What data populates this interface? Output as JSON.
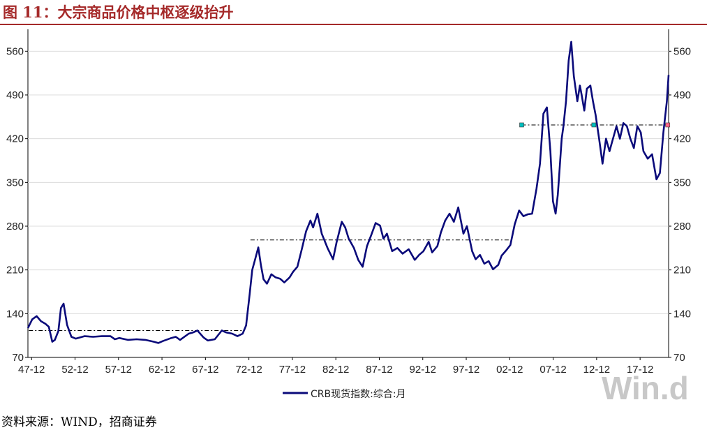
{
  "header": {
    "title": "图 11：大宗商品价格中枢逐级抬升"
  },
  "footer": {
    "source": "资料来源：WIND，招商证券"
  },
  "watermark": "Win.d",
  "chart_data": {
    "type": "line",
    "title": "图 11：大宗商品价格中枢逐级抬升",
    "xlabel": "",
    "ylabel": "",
    "x_tick_labels": [
      "47-12",
      "52-12",
      "57-12",
      "62-12",
      "67-12",
      "72-12",
      "77-12",
      "82-12",
      "87-12",
      "92-12",
      "97-12",
      "02-12",
      "07-12",
      "12-12",
      "17-12"
    ],
    "x_tick_years": [
      1947.92,
      1952.92,
      1957.92,
      1962.92,
      1967.92,
      1972.92,
      1977.92,
      1982.92,
      1987.92,
      1992.92,
      1997.92,
      2002.92,
      2007.92,
      2012.92,
      2017.92
    ],
    "xlim": [
      1947.5,
      2021.2
    ],
    "ylim": [
      70,
      595
    ],
    "y_ticks": [
      70,
      140,
      210,
      280,
      350,
      420,
      490,
      560
    ],
    "dual_y_axis": true,
    "grid": "horizontal",
    "legend_position": "bottom",
    "colors": {
      "series": "#0a0a7a",
      "reference": "#000000",
      "marker": "#00bfbf",
      "marker_end": "#ff6688",
      "title": "#a52a2a"
    },
    "series": [
      {
        "name": "CRB现货指数:综合:月",
        "x": [
          1947.5,
          1948.0,
          1948.5,
          1949.0,
          1949.5,
          1949.9,
          1950.3,
          1950.6,
          1951.0,
          1951.3,
          1951.6,
          1952.0,
          1952.5,
          1953.0,
          1954.0,
          1955.0,
          1956.0,
          1957.0,
          1957.5,
          1958.0,
          1959.0,
          1960.0,
          1961.0,
          1962.0,
          1962.5,
          1963.0,
          1964.0,
          1964.5,
          1965.0,
          1966.0,
          1966.5,
          1967.0,
          1967.7,
          1968.2,
          1969.0,
          1969.8,
          1970.3,
          1971.0,
          1971.6,
          1972.2,
          1972.6,
          1973.0,
          1973.3,
          1973.6,
          1974.0,
          1974.3,
          1974.6,
          1975.0,
          1975.5,
          1976.0,
          1976.5,
          1977.0,
          1977.6,
          1978.0,
          1978.5,
          1979.0,
          1979.5,
          1980.0,
          1980.3,
          1980.8,
          1981.3,
          1982.0,
          1982.6,
          1983.0,
          1983.6,
          1984.0,
          1984.4,
          1985.0,
          1985.5,
          1986.0,
          1986.5,
          1987.0,
          1987.5,
          1988.0,
          1988.4,
          1988.8,
          1989.4,
          1990.0,
          1990.6,
          1991.3,
          1992.0,
          1992.5,
          1993.0,
          1993.6,
          1994.0,
          1994.6,
          1995.0,
          1995.5,
          1996.0,
          1996.5,
          1997.0,
          1997.6,
          1998.0,
          1998.6,
          1999.0,
          1999.5,
          2000.0,
          2000.5,
          2001.0,
          2001.6,
          2002.0,
          2002.5,
          2003.0,
          2003.5,
          2004.0,
          2004.5,
          2005.0,
          2005.5,
          2006.0,
          2006.4,
          2006.8,
          2007.2,
          2007.6,
          2007.9,
          2008.2,
          2008.45,
          2008.6,
          2008.9,
          2009.1,
          2009.4,
          2009.7,
          2010.0,
          2010.3,
          2010.5,
          2010.7,
          2011.0,
          2011.2,
          2011.5,
          2011.8,
          2012.2,
          2012.5,
          2012.8,
          2013.2,
          2013.6,
          2014.0,
          2014.4,
          2014.8,
          2015.2,
          2015.6,
          2016.0,
          2016.4,
          2016.8,
          2017.2,
          2017.6,
          2018.0,
          2018.3,
          2018.8,
          2019.3,
          2019.8,
          2020.2,
          2020.6,
          2021.0,
          2021.2
        ],
        "values": [
          117,
          131,
          136,
          128,
          124,
          119,
          95,
          98,
          112,
          149,
          156,
          122,
          103,
          100,
          104,
          103,
          104,
          104,
          99,
          101,
          98,
          99,
          98,
          95,
          93,
          96,
          101,
          103,
          98,
          108,
          110,
          113,
          102,
          97,
          99,
          113,
          110,
          108,
          104,
          108,
          121,
          170,
          210,
          225,
          246,
          218,
          195,
          188,
          203,
          198,
          196,
          190,
          198,
          207,
          215,
          243,
          272,
          289,
          278,
          300,
          268,
          244,
          227,
          254,
          287,
          278,
          260,
          245,
          226,
          215,
          248,
          266,
          285,
          281,
          260,
          268,
          240,
          245,
          236,
          243,
          226,
          234,
          240,
          255,
          238,
          248,
          270,
          289,
          300,
          287,
          310,
          268,
          280,
          240,
          227,
          234,
          220,
          224,
          211,
          218,
          233,
          241,
          250,
          283,
          305,
          296,
          299,
          300,
          340,
          380,
          460,
          470,
          400,
          320,
          300,
          330,
          360,
          420,
          440,
          480,
          545,
          575,
          520,
          500,
          480,
          505,
          490,
          465,
          500,
          505,
          480,
          458,
          420,
          380,
          420,
          400,
          420,
          440,
          420,
          445,
          440,
          420,
          405,
          440,
          430,
          400,
          388,
          395,
          355,
          365,
          430,
          480,
          522
        ]
      }
    ],
    "reference_lines": [
      {
        "x": [
          1947.6,
          1972.4
        ],
        "y": 113
      },
      {
        "x": [
          1973.1,
          2003.4
        ],
        "y": 258
      },
      {
        "x": [
          2004.3,
          2021.1
        ],
        "y": 442
      }
    ],
    "reference_markers": [
      {
        "x": 2004.3,
        "y": 442
      },
      {
        "x": 2012.6,
        "y": 442
      },
      {
        "x": 2021.1,
        "y": 442
      }
    ]
  }
}
